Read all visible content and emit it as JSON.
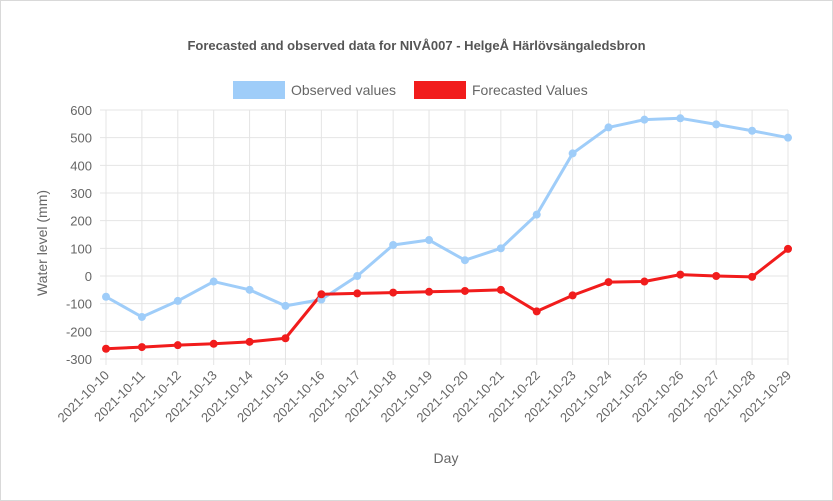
{
  "chart_data": {
    "type": "line",
    "title": "Forecasted and observed data for NIVÅ007 - HelgeÅ Härlövsängaledsbron",
    "xlabel": "Day",
    "ylabel": "Water level (mm)",
    "ylim": [
      -300,
      600
    ],
    "yticks": [
      600,
      500,
      400,
      300,
      200,
      100,
      0,
      -100,
      -200,
      -300
    ],
    "grid": true,
    "legend_position": "top",
    "categories": [
      "2021-10-10",
      "2021-10-11",
      "2021-10-12",
      "2021-10-13",
      "2021-10-14",
      "2021-10-15",
      "2021-10-16",
      "2021-10-17",
      "2021-10-18",
      "2021-10-19",
      "2021-10-20",
      "2021-10-21",
      "2021-10-22",
      "2021-10-23",
      "2021-10-24",
      "2021-10-25",
      "2021-10-26",
      "2021-10-27",
      "2021-10-28",
      "2021-10-29"
    ],
    "series": [
      {
        "name": "Observed values",
        "color": "#9fcdf9",
        "values": [
          -75,
          -148,
          -90,
          -20,
          -50,
          -108,
          -85,
          0,
          112,
          130,
          57,
          100,
          222,
          443,
          537,
          565,
          570,
          548,
          525,
          500
        ]
      },
      {
        "name": "Forecasted Values",
        "color": "#f11c1c",
        "values": [
          -263,
          -257,
          -250,
          -245,
          -238,
          -225,
          -66,
          -63,
          -60,
          -57,
          -54,
          -50,
          -128,
          -70,
          -22,
          -20,
          5,
          0,
          -3,
          98
        ]
      }
    ]
  }
}
